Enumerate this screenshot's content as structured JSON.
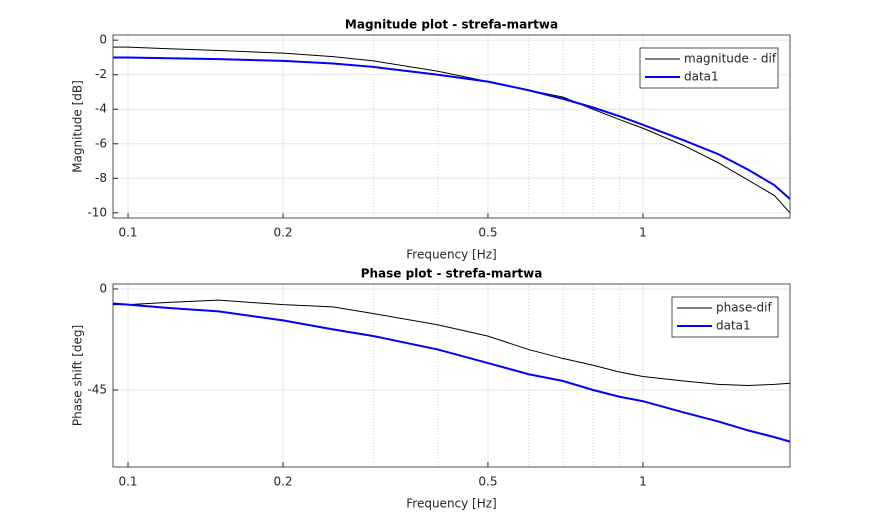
{
  "chart_data": [
    {
      "type": "line",
      "title": "Magnitude plot - strefa-martwa",
      "xlabel": "Frequency [Hz]",
      "ylabel": "Magnitude [dB]",
      "xscale": "log",
      "xlim": [
        0.0935,
        1.93
      ],
      "xticks": [
        0.1,
        0.2,
        0.5,
        1
      ],
      "minor_grid_x": [
        0.3,
        0.4,
        0.6,
        0.7,
        0.8,
        0.9
      ],
      "ylim": [
        -10.3,
        0.3
      ],
      "yticks": [
        -10,
        -8,
        -6,
        -4,
        -2,
        0
      ],
      "grid": true,
      "legend": "upper right",
      "x": [
        0.0935,
        0.1,
        0.12,
        0.15,
        0.2,
        0.25,
        0.3,
        0.4,
        0.5,
        0.6,
        0.7,
        0.8,
        0.9,
        1.0,
        1.2,
        1.4,
        1.6,
        1.8,
        1.93
      ],
      "series": [
        {
          "name": "magnitude - dif",
          "color": "#000000",
          "values": [
            -0.4,
            -0.4,
            -0.5,
            -0.6,
            -0.75,
            -0.95,
            -1.2,
            -1.8,
            -2.4,
            -2.9,
            -3.3,
            -4.0,
            -4.6,
            -5.1,
            -6.1,
            -7.1,
            -8.1,
            -9.0,
            -10.0
          ]
        },
        {
          "name": "data1",
          "color": "#0000ff",
          "values": [
            -1.0,
            -1.0,
            -1.05,
            -1.1,
            -1.2,
            -1.35,
            -1.55,
            -2.0,
            -2.4,
            -2.9,
            -3.4,
            -3.9,
            -4.4,
            -4.9,
            -5.8,
            -6.6,
            -7.5,
            -8.4,
            -9.2
          ]
        }
      ]
    },
    {
      "type": "line",
      "title": "Phase plot - strefa-martwa",
      "xlabel": "Frequency [Hz]",
      "ylabel": "Phase shift [deg]",
      "xscale": "log",
      "xlim": [
        0.0935,
        1.93
      ],
      "xticks": [
        0.1,
        0.2,
        0.5,
        1
      ],
      "minor_grid_x": [
        0.3,
        0.4,
        0.6,
        0.7,
        0.8,
        0.9
      ],
      "ylim": [
        -79.3,
        2.2
      ],
      "yticks": [
        -45,
        0
      ],
      "grid": true,
      "legend": "upper right",
      "x": [
        0.0935,
        0.1,
        0.12,
        0.15,
        0.2,
        0.25,
        0.3,
        0.4,
        0.5,
        0.6,
        0.7,
        0.8,
        0.9,
        1.0,
        1.2,
        1.4,
        1.6,
        1.8,
        1.93
      ],
      "series": [
        {
          "name": "phase-dif",
          "color": "#000000",
          "values": [
            -7,
            -7,
            -6,
            -5,
            -7,
            -8,
            -11,
            -16,
            -21,
            -27,
            -31,
            -34,
            -37,
            -39,
            -41,
            -42.5,
            -43,
            -42.5,
            -42
          ]
        },
        {
          "name": "data1",
          "color": "#0000ff",
          "values": [
            -6.5,
            -7,
            -8.5,
            -10,
            -14,
            -18,
            -21,
            -27,
            -33,
            -38,
            -41,
            -45,
            -48,
            -50,
            -55,
            -59,
            -63,
            -66,
            -68
          ]
        }
      ]
    }
  ]
}
